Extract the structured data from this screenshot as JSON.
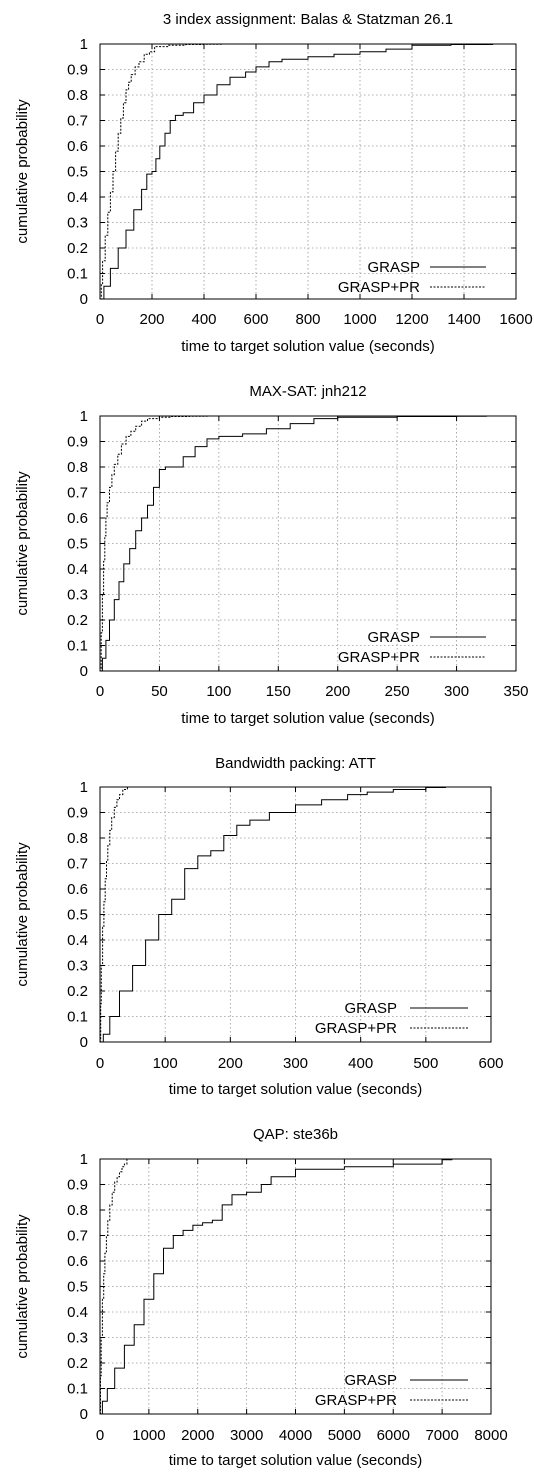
{
  "chart_data": [
    {
      "type": "line",
      "title": "3 index assignment: Balas & Statzman 26.1",
      "xlabel": "time to target solution value (seconds)",
      "ylabel": "cumulative probability",
      "xlim": [
        0,
        1600
      ],
      "ylim": [
        0,
        1
      ],
      "x_ticks": [
        0,
        200,
        400,
        600,
        800,
        1000,
        1200,
        1400,
        1600
      ],
      "y_ticks": [
        0,
        0.1,
        0.2,
        0.3,
        0.4,
        0.5,
        0.6,
        0.7,
        0.8,
        0.9,
        1
      ],
      "grid": true,
      "legend_position": "bottom-right",
      "series": [
        {
          "name": "GRASP",
          "style": "solid",
          "x": [
            0,
            15,
            40,
            70,
            100,
            130,
            160,
            180,
            200,
            215,
            230,
            250,
            270,
            290,
            320,
            360,
            400,
            450,
            500,
            560,
            600,
            650,
            700,
            800,
            900,
            1000,
            1100,
            1200,
            1350,
            1510
          ],
          "y": [
            0,
            0.05,
            0.12,
            0.2,
            0.27,
            0.35,
            0.43,
            0.49,
            0.5,
            0.55,
            0.6,
            0.65,
            0.7,
            0.72,
            0.73,
            0.77,
            0.8,
            0.84,
            0.87,
            0.89,
            0.91,
            0.93,
            0.94,
            0.95,
            0.96,
            0.97,
            0.98,
            0.995,
            0.998,
            1
          ]
        },
        {
          "name": "GRASP+PR",
          "style": "dashed",
          "x": [
            0,
            5,
            10,
            20,
            30,
            40,
            50,
            60,
            70,
            80,
            90,
            100,
            110,
            120,
            135,
            150,
            170,
            190,
            210,
            260,
            330,
            400,
            470
          ],
          "y": [
            0,
            0.06,
            0.15,
            0.25,
            0.34,
            0.42,
            0.5,
            0.58,
            0.65,
            0.71,
            0.77,
            0.82,
            0.85,
            0.88,
            0.91,
            0.93,
            0.96,
            0.97,
            0.99,
            0.995,
            0.998,
            0.999,
            1
          ]
        }
      ]
    },
    {
      "type": "line",
      "title": "MAX-SAT: jnh212",
      "xlabel": "time to target solution value (seconds)",
      "ylabel": "cumulative probability",
      "xlim": [
        0,
        350
      ],
      "ylim": [
        0,
        1
      ],
      "x_ticks": [
        0,
        50,
        100,
        150,
        200,
        250,
        300,
        350
      ],
      "y_ticks": [
        0,
        0.1,
        0.2,
        0.3,
        0.4,
        0.5,
        0.6,
        0.7,
        0.8,
        0.9,
        1
      ],
      "grid": true,
      "legend_position": "bottom-right",
      "series": [
        {
          "name": "GRASP",
          "style": "solid",
          "x": [
            0,
            2,
            5,
            8,
            12,
            16,
            20,
            25,
            30,
            35,
            40,
            45,
            50,
            55,
            60,
            70,
            80,
            90,
            100,
            120,
            140,
            160,
            180,
            200,
            250,
            300,
            325
          ],
          "y": [
            0,
            0.05,
            0.12,
            0.2,
            0.28,
            0.35,
            0.42,
            0.48,
            0.55,
            0.6,
            0.65,
            0.72,
            0.79,
            0.8,
            0.8,
            0.84,
            0.88,
            0.91,
            0.92,
            0.93,
            0.95,
            0.97,
            0.99,
            0.995,
            0.998,
            0.999,
            1
          ]
        },
        {
          "name": "GRASP+PR",
          "style": "dashed",
          "x": [
            0,
            1,
            2,
            3,
            4,
            5,
            6,
            8,
            10,
            12,
            15,
            18,
            22,
            26,
            30,
            35,
            40,
            50,
            60,
            75,
            90
          ],
          "y": [
            0,
            0.15,
            0.3,
            0.43,
            0.53,
            0.6,
            0.66,
            0.72,
            0.77,
            0.81,
            0.85,
            0.89,
            0.92,
            0.94,
            0.96,
            0.98,
            0.99,
            0.995,
            0.998,
            0.999,
            1
          ]
        }
      ]
    },
    {
      "type": "line",
      "title": "Bandwidth packing: ATT",
      "xlabel": "time to target solution value (seconds)",
      "ylabel": "cumulative probability",
      "xlim": [
        0,
        600
      ],
      "ylim": [
        0,
        1
      ],
      "x_ticks": [
        0,
        100,
        200,
        300,
        400,
        500,
        600
      ],
      "y_ticks": [
        0,
        0.1,
        0.2,
        0.3,
        0.4,
        0.5,
        0.6,
        0.7,
        0.8,
        0.9,
        1
      ],
      "grid": true,
      "legend_position": "bottom-right",
      "series": [
        {
          "name": "GRASP",
          "style": "solid",
          "x": [
            0,
            5,
            15,
            30,
            50,
            70,
            90,
            110,
            130,
            150,
            170,
            190,
            210,
            230,
            260,
            300,
            340,
            380,
            410,
            450,
            500,
            530
          ],
          "y": [
            0,
            0.03,
            0.1,
            0.2,
            0.3,
            0.4,
            0.5,
            0.56,
            0.68,
            0.73,
            0.75,
            0.81,
            0.85,
            0.87,
            0.9,
            0.93,
            0.95,
            0.97,
            0.98,
            0.99,
            0.998,
            1
          ]
        },
        {
          "name": "GRASP+PR",
          "style": "dashed",
          "x": [
            0,
            1,
            2,
            4,
            6,
            8,
            10,
            12,
            15,
            18,
            22,
            26,
            30,
            35,
            42
          ],
          "y": [
            0,
            0.15,
            0.3,
            0.45,
            0.55,
            0.64,
            0.71,
            0.77,
            0.83,
            0.88,
            0.92,
            0.95,
            0.97,
            0.99,
            1
          ]
        }
      ]
    },
    {
      "type": "line",
      "title": "QAP: ste36b",
      "xlabel": "time to target solution value (seconds)",
      "ylabel": "cumulative probability",
      "xlim": [
        0,
        8000
      ],
      "ylim": [
        0,
        1
      ],
      "x_ticks": [
        0,
        1000,
        2000,
        3000,
        4000,
        5000,
        6000,
        7000,
        8000
      ],
      "y_ticks": [
        0,
        0.1,
        0.2,
        0.3,
        0.4,
        0.5,
        0.6,
        0.7,
        0.8,
        0.9,
        1
      ],
      "grid": true,
      "legend_position": "bottom-right",
      "series": [
        {
          "name": "GRASP",
          "style": "solid",
          "x": [
            0,
            50,
            150,
            300,
            500,
            700,
            900,
            1100,
            1300,
            1500,
            1700,
            1900,
            2100,
            2300,
            2500,
            2700,
            3000,
            3300,
            3500,
            4000,
            5000,
            6000,
            7000,
            7200
          ],
          "y": [
            0,
            0.05,
            0.1,
            0.18,
            0.27,
            0.35,
            0.45,
            0.55,
            0.65,
            0.7,
            0.72,
            0.74,
            0.75,
            0.76,
            0.82,
            0.86,
            0.87,
            0.9,
            0.93,
            0.96,
            0.97,
            0.98,
            0.997,
            1
          ]
        },
        {
          "name": "GRASP+PR",
          "style": "dashed",
          "x": [
            0,
            10,
            25,
            50,
            75,
            100,
            130,
            160,
            200,
            250,
            300,
            350,
            400,
            450,
            500,
            550
          ],
          "y": [
            0,
            0.15,
            0.3,
            0.45,
            0.55,
            0.63,
            0.7,
            0.76,
            0.82,
            0.87,
            0.91,
            0.93,
            0.95,
            0.97,
            0.98,
            1
          ]
        }
      ]
    }
  ]
}
